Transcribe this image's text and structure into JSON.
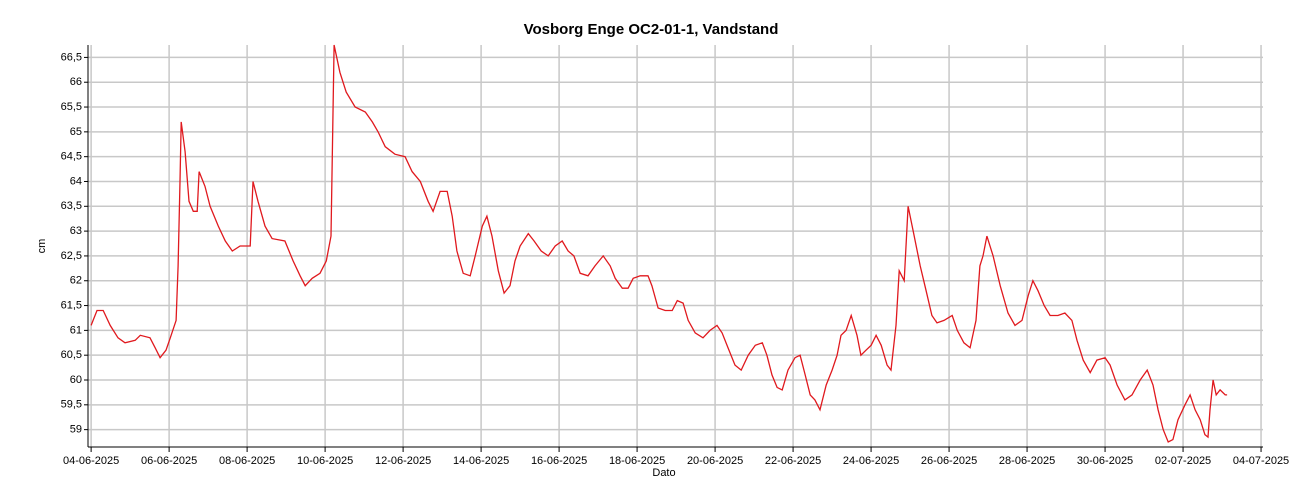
{
  "chart_data": {
    "type": "line",
    "title": "Vosborg Enge OC2-01-1, Vandstand",
    "xlabel": "Dato",
    "ylabel": "cm",
    "color": "#e0191e",
    "grid": true,
    "xlim": [
      -0.08,
      30.05
    ],
    "ylim": [
      58.65,
      66.75
    ],
    "xticks": [
      {
        "value": 0,
        "label": "04-06-2025"
      },
      {
        "value": 2,
        "label": "06-06-2025"
      },
      {
        "value": 4,
        "label": "08-06-2025"
      },
      {
        "value": 6,
        "label": "10-06-2025"
      },
      {
        "value": 8,
        "label": "12-06-2025"
      },
      {
        "value": 10,
        "label": "14-06-2025"
      },
      {
        "value": 12,
        "label": "16-06-2025"
      },
      {
        "value": 14,
        "label": "18-06-2025"
      },
      {
        "value": 16,
        "label": "20-06-2025"
      },
      {
        "value": 18,
        "label": "22-06-2025"
      },
      {
        "value": 20,
        "label": "24-06-2025"
      },
      {
        "value": 22,
        "label": "26-06-2025"
      },
      {
        "value": 24,
        "label": "28-06-2025"
      },
      {
        "value": 26,
        "label": "30-06-2025"
      },
      {
        "value": 28,
        "label": "02-07-2025"
      },
      {
        "value": 30,
        "label": "04-07-2025"
      }
    ],
    "yticks": [
      59,
      {
        "value": 59.5,
        "label": "59,5"
      },
      60,
      {
        "value": 60.5,
        "label": "60,5"
      },
      61,
      {
        "value": 61.5,
        "label": "61,5"
      },
      62,
      {
        "value": 62.5,
        "label": "62,5"
      },
      63,
      {
        "value": 63.5,
        "label": "63,5"
      },
      64,
      {
        "value": 64.5,
        "label": "64,5"
      },
      65,
      {
        "value": 65.5,
        "label": "65,5"
      },
      66,
      {
        "value": 66.5,
        "label": "66,5"
      }
    ],
    "x": [
      0,
      0.15,
      0.31,
      0.49,
      0.69,
      0.87,
      1.13,
      1.26,
      1.51,
      1.64,
      1.77,
      1.92,
      2.03,
      2.18,
      2.23,
      2.28,
      2.31,
      2.41,
      2.51,
      2.62,
      2.72,
      2.77,
      2.92,
      3.05,
      3.26,
      3.44,
      3.62,
      3.82,
      4.08,
      4.15,
      4.28,
      4.46,
      4.64,
      4.97,
      5.18,
      5.36,
      5.49,
      5.67,
      5.87,
      6.03,
      6.15,
      6.23,
      6.38,
      6.54,
      6.77,
      7.03,
      7.21,
      7.36,
      7.54,
      7.79,
      8.05,
      8.23,
      8.44,
      8.64,
      8.77,
      8.95,
      9.13,
      9.26,
      9.38,
      9.54,
      9.72,
      9.85,
      10.03,
      10.15,
      10.28,
      10.44,
      10.59,
      10.74,
      10.87,
      11.0,
      11.21,
      11.36,
      11.54,
      11.72,
      11.9,
      12.08,
      12.23,
      12.38,
      12.54,
      12.74,
      12.92,
      13.13,
      13.31,
      13.44,
      13.62,
      13.77,
      13.9,
      14.08,
      14.28,
      14.38,
      14.54,
      14.72,
      14.9,
      15.03,
      15.18,
      15.31,
      15.49,
      15.69,
      15.87,
      16.05,
      16.18,
      16.33,
      16.51,
      16.67,
      16.85,
      17.03,
      17.21,
      17.33,
      17.46,
      17.59,
      17.72,
      17.87,
      18.05,
      18.18,
      18.31,
      18.44,
      18.56,
      18.69,
      18.85,
      19.0,
      19.13,
      19.23,
      19.36,
      19.49,
      19.64,
      19.74,
      19.87,
      20.0,
      20.13,
      20.26,
      20.41,
      20.51,
      20.64,
      20.72,
      20.85,
      20.95,
      21.08,
      21.26,
      21.41,
      21.56,
      21.69,
      21.87,
      22.08,
      22.21,
      22.38,
      22.54,
      22.69,
      22.79,
      22.87,
      22.97,
      23.13,
      23.31,
      23.51,
      23.69,
      23.87,
      24.03,
      24.15,
      24.28,
      24.44,
      24.59,
      24.79,
      24.97,
      25.15,
      25.28,
      25.44,
      25.62,
      25.79,
      26.0,
      26.13,
      26.31,
      26.51,
      26.69,
      26.9,
      27.08,
      27.23,
      27.36,
      27.49,
      27.62,
      27.74,
      27.87,
      28.05,
      28.18,
      28.31,
      28.44,
      28.56,
      28.64,
      28.69,
      28.77,
      28.85,
      28.95,
      29.08,
      29.13
    ],
    "values": [
      61.1,
      61.4,
      61.4,
      61.1,
      60.85,
      60.75,
      60.8,
      60.9,
      60.85,
      60.65,
      60.45,
      60.6,
      60.85,
      61.2,
      62.3,
      64.0,
      65.2,
      64.6,
      63.6,
      63.4,
      63.4,
      64.2,
      63.9,
      63.5,
      63.1,
      62.8,
      62.6,
      62.7,
      62.7,
      64.0,
      63.6,
      63.1,
      62.85,
      62.8,
      62.4,
      62.1,
      61.9,
      62.05,
      62.15,
      62.4,
      62.9,
      66.75,
      66.2,
      65.8,
      65.5,
      65.4,
      65.2,
      65.0,
      64.7,
      64.55,
      64.5,
      64.2,
      64.0,
      63.6,
      63.4,
      63.8,
      63.8,
      63.3,
      62.6,
      62.15,
      62.1,
      62.5,
      63.1,
      63.3,
      62.9,
      62.2,
      61.75,
      61.9,
      62.4,
      62.7,
      62.95,
      62.8,
      62.6,
      62.5,
      62.7,
      62.8,
      62.6,
      62.5,
      62.15,
      62.1,
      62.3,
      62.5,
      62.3,
      62.05,
      61.85,
      61.85,
      62.05,
      62.1,
      62.1,
      61.9,
      61.45,
      61.4,
      61.4,
      61.6,
      61.55,
      61.2,
      60.95,
      60.85,
      61.0,
      61.1,
      60.95,
      60.65,
      60.3,
      60.2,
      60.5,
      60.7,
      60.75,
      60.5,
      60.1,
      59.85,
      59.8,
      60.2,
      60.45,
      60.5,
      60.1,
      59.7,
      59.6,
      59.4,
      59.9,
      60.2,
      60.5,
      60.9,
      61.0,
      61.3,
      60.9,
      60.5,
      60.6,
      60.7,
      60.9,
      60.7,
      60.3,
      60.2,
      61.1,
      62.2,
      62.0,
      63.5,
      63.0,
      62.3,
      61.8,
      61.3,
      61.15,
      61.2,
      61.3,
      61.0,
      60.75,
      60.65,
      61.2,
      62.3,
      62.5,
      62.9,
      62.5,
      61.9,
      61.35,
      61.1,
      61.2,
      61.7,
      62.0,
      61.8,
      61.5,
      61.3,
      61.3,
      61.35,
      61.2,
      60.8,
      60.4,
      60.15,
      60.4,
      60.45,
      60.3,
      59.9,
      59.6,
      59.7,
      60.0,
      60.2,
      59.9,
      59.4,
      59.0,
      58.75,
      58.8,
      59.2,
      59.5,
      59.7,
      59.4,
      59.2,
      58.9,
      58.85,
      59.4,
      60.0,
      59.7,
      59.8,
      59.7,
      59.7
    ]
  }
}
